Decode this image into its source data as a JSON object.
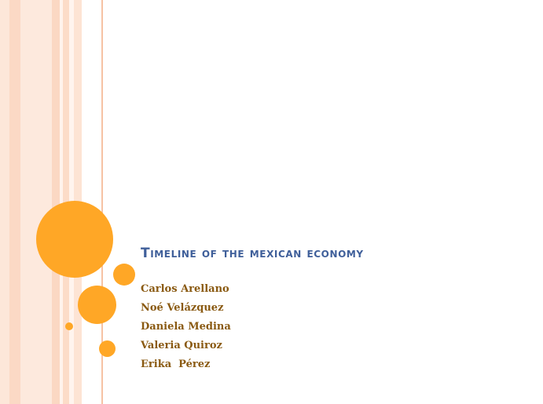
{
  "slide": {
    "title": "Timeline of the mexican economy",
    "authors": [
      "Carlos Arellano",
      "Noé Velázquez",
      "Daniela Medina",
      "Valeria Quiroz",
      "Erika  Pérez"
    ]
  },
  "colors": {
    "accent_circles": "#ffa726",
    "title": "#3f5f9a",
    "authors": "#8a5a12",
    "stripes": "#fbd9c5"
  }
}
